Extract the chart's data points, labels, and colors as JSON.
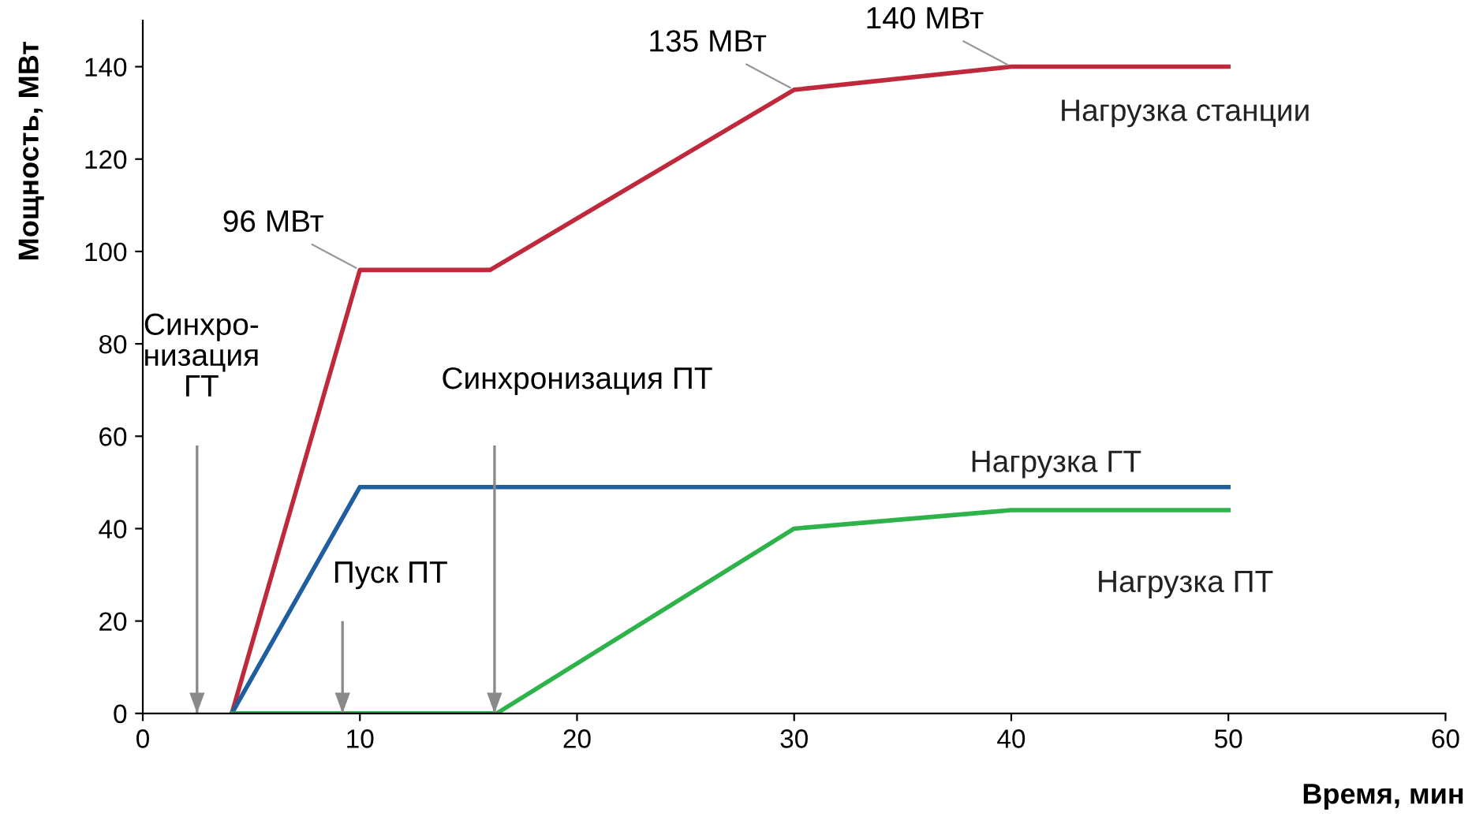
{
  "chart_data": {
    "type": "line",
    "xlabel": "Время, мин",
    "ylabel": "Мощность, МВт",
    "xlim": [
      0,
      60
    ],
    "xticks": [
      0,
      10,
      20,
      30,
      40,
      50,
      60
    ],
    "ylim": [
      0,
      150
    ],
    "yticks": [
      0,
      20,
      40,
      60,
      80,
      100,
      120,
      140
    ],
    "grid": false,
    "legend": false,
    "marker": "none",
    "line_style": "solid",
    "series": [
      {
        "name": "Нагрузка станции",
        "color": "#c0283c",
        "x": [
          4.1,
          10,
          16,
          30,
          40,
          50
        ],
        "values": [
          0,
          96,
          96,
          135,
          140,
          140
        ]
      },
      {
        "name": "Нагрузка ГТ",
        "color": "#1f5fa0",
        "x": [
          4.1,
          10,
          50
        ],
        "values": [
          0,
          49,
          49
        ]
      },
      {
        "name": "Нагрузка ПТ",
        "color": "#2db34a",
        "x": [
          4.1,
          16.3,
          30,
          40,
          50
        ],
        "values": [
          0,
          0,
          40,
          44,
          44
        ]
      }
    ],
    "annotations": [
      {
        "text": "96 МВт",
        "x": 10,
        "y": 96
      },
      {
        "text": "135 МВт",
        "x": 30,
        "y": 135
      },
      {
        "text": "140 МВт",
        "x": 40,
        "y": 140
      }
    ],
    "ref_lines": [
      {
        "axis": "x",
        "value": 2.5,
        "label": "Синхро-\nнизация\nГТ",
        "color": "#8a8a8a"
      },
      {
        "axis": "x",
        "value": 9.2,
        "label": "Пуск ПТ",
        "color": "#8a8a8a"
      },
      {
        "axis": "x",
        "value": 16.2,
        "label": "Синхронизация ПТ",
        "color": "#8a8a8a"
      }
    ]
  }
}
